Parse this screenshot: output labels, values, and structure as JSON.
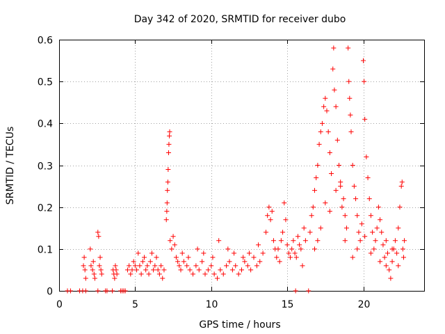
{
  "chart_data": {
    "type": "scatter",
    "title": "Day 342 of 2020, SRMTID for receiver dubo",
    "xlabel": "GPS time / hours",
    "ylabel": "SRMTID / TECUs",
    "xlim": [
      0,
      24
    ],
    "ylim": [
      0,
      0.6
    ],
    "xticks": [
      "0",
      "5",
      "10",
      "15",
      "20"
    ],
    "yticks": [
      "0",
      "0.1",
      "0.2",
      "0.3",
      "0.4",
      "0.5",
      "0.6"
    ],
    "grid": true,
    "marker": "+",
    "color": "#ff0000",
    "series": [
      {
        "name": "SRMTID",
        "points": [
          [
            0.55,
            0
          ],
          [
            0.75,
            0
          ],
          [
            1.35,
            0
          ],
          [
            1.55,
            0
          ],
          [
            1.75,
            0
          ],
          [
            2.55,
            0
          ],
          [
            3.05,
            0
          ],
          [
            3.15,
            0
          ],
          [
            3.5,
            0
          ],
          [
            4.05,
            0
          ],
          [
            4.15,
            0
          ],
          [
            4.25,
            0
          ],
          [
            4.35,
            0
          ],
          [
            15.55,
            0
          ],
          [
            16.4,
            0
          ],
          [
            1.6,
            0.06
          ],
          [
            1.65,
            0.08
          ],
          [
            1.7,
            0.05
          ],
          [
            1.75,
            0.03
          ],
          [
            2.05,
            0.1
          ],
          [
            2.1,
            0.06
          ],
          [
            2.2,
            0.05
          ],
          [
            2.25,
            0.07
          ],
          [
            2.3,
            0.04
          ],
          [
            2.35,
            0.03
          ],
          [
            2.55,
            0.14
          ],
          [
            2.6,
            0.13
          ],
          [
            2.65,
            0.06
          ],
          [
            2.7,
            0.08
          ],
          [
            2.75,
            0.05
          ],
          [
            2.8,
            0.04
          ],
          [
            3.55,
            0.05
          ],
          [
            3.6,
            0.04
          ],
          [
            3.65,
            0.03
          ],
          [
            3.7,
            0.06
          ],
          [
            3.75,
            0.05
          ],
          [
            3.8,
            0.04
          ],
          [
            4.5,
            0.05
          ],
          [
            4.6,
            0.06
          ],
          [
            4.7,
            0.04
          ],
          [
            4.8,
            0.05
          ],
          [
            4.9,
            0.07
          ],
          [
            5.0,
            0.06
          ],
          [
            5.1,
            0.05
          ],
          [
            5.2,
            0.09
          ],
          [
            5.3,
            0.06
          ],
          [
            5.4,
            0.04
          ],
          [
            5.5,
            0.07
          ],
          [
            5.6,
            0.08
          ],
          [
            5.7,
            0.05
          ],
          [
            5.8,
            0.06
          ],
          [
            5.9,
            0.04
          ],
          [
            6.0,
            0.07
          ],
          [
            6.1,
            0.09
          ],
          [
            6.2,
            0.05
          ],
          [
            6.3,
            0.06
          ],
          [
            6.4,
            0.08
          ],
          [
            6.5,
            0.05
          ],
          [
            6.6,
            0.04
          ],
          [
            6.7,
            0.06
          ],
          [
            6.8,
            0.03
          ],
          [
            6.9,
            0.05
          ],
          [
            7.05,
            0.17
          ],
          [
            7.08,
            0.19
          ],
          [
            7.1,
            0.21
          ],
          [
            7.12,
            0.24
          ],
          [
            7.15,
            0.26
          ],
          [
            7.17,
            0.29
          ],
          [
            7.2,
            0.33
          ],
          [
            7.22,
            0.35
          ],
          [
            7.25,
            0.37
          ],
          [
            7.27,
            0.38
          ],
          [
            7.3,
            0.12
          ],
          [
            7.4,
            0.1
          ],
          [
            7.5,
            0.13
          ],
          [
            7.6,
            0.11
          ],
          [
            7.7,
            0.08
          ],
          [
            7.8,
            0.07
          ],
          [
            7.9,
            0.06
          ],
          [
            8.0,
            0.05
          ],
          [
            8.2,
            0.07
          ],
          [
            8.4,
            0.06
          ],
          [
            8.6,
            0.05
          ],
          [
            8.8,
            0.04
          ],
          [
            9.0,
            0.06
          ],
          [
            9.2,
            0.05
          ],
          [
            9.4,
            0.07
          ],
          [
            9.6,
            0.04
          ],
          [
            9.8,
            0.05
          ],
          [
            10.0,
            0.06
          ],
          [
            10.2,
            0.04
          ],
          [
            10.4,
            0.03
          ],
          [
            10.6,
            0.05
          ],
          [
            10.8,
            0.04
          ],
          [
            11.0,
            0.06
          ],
          [
            11.2,
            0.07
          ],
          [
            11.4,
            0.05
          ],
          [
            11.6,
            0.06
          ],
          [
            11.8,
            0.04
          ],
          [
            12.0,
            0.05
          ],
          [
            12.2,
            0.07
          ],
          [
            12.4,
            0.06
          ],
          [
            12.6,
            0.05
          ],
          [
            12.8,
            0.08
          ],
          [
            13.0,
            0.06
          ],
          [
            13.2,
            0.07
          ],
          [
            13.4,
            0.09
          ],
          [
            8.1,
            0.09
          ],
          [
            8.5,
            0.08
          ],
          [
            9.1,
            0.1
          ],
          [
            9.5,
            0.09
          ],
          [
            10.1,
            0.08
          ],
          [
            10.5,
            0.12
          ],
          [
            11.1,
            0.1
          ],
          [
            11.5,
            0.09
          ],
          [
            12.1,
            0.08
          ],
          [
            12.5,
            0.09
          ],
          [
            13.1,
            0.11
          ],
          [
            13.6,
            0.14
          ],
          [
            13.7,
            0.18
          ],
          [
            13.8,
            0.2
          ],
          [
            13.9,
            0.17
          ],
          [
            14.0,
            0.19
          ],
          [
            14.1,
            0.12
          ],
          [
            14.2,
            0.1
          ],
          [
            14.3,
            0.08
          ],
          [
            14.4,
            0.1
          ],
          [
            14.5,
            0.07
          ],
          [
            14.6,
            0.12
          ],
          [
            14.7,
            0.14
          ],
          [
            14.8,
            0.21
          ],
          [
            14.9,
            0.17
          ],
          [
            15.0,
            0.11
          ],
          [
            15.1,
            0.09
          ],
          [
            15.2,
            0.08
          ],
          [
            15.3,
            0.1
          ],
          [
            15.4,
            0.12
          ],
          [
            15.5,
            0.09
          ],
          [
            15.6,
            0.08
          ],
          [
            15.7,
            0.13
          ],
          [
            15.8,
            0.11
          ],
          [
            15.9,
            0.1
          ],
          [
            16.0,
            0.06
          ],
          [
            16.1,
            0.15
          ],
          [
            16.2,
            0.12
          ],
          [
            16.5,
            0.14
          ],
          [
            16.6,
            0.18
          ],
          [
            16.7,
            0.2
          ],
          [
            16.8,
            0.24
          ],
          [
            16.9,
            0.27
          ],
          [
            17.0,
            0.3
          ],
          [
            17.1,
            0.35
          ],
          [
            17.2,
            0.38
          ],
          [
            17.3,
            0.4
          ],
          [
            17.4,
            0.44
          ],
          [
            17.5,
            0.46
          ],
          [
            17.6,
            0.43
          ],
          [
            17.7,
            0.38
          ],
          [
            17.8,
            0.33
          ],
          [
            17.9,
            0.28
          ],
          [
            18.0,
            0.53
          ],
          [
            18.05,
            0.58
          ],
          [
            18.1,
            0.48
          ],
          [
            18.2,
            0.44
          ],
          [
            18.3,
            0.36
          ],
          [
            18.4,
            0.3
          ],
          [
            18.5,
            0.25
          ],
          [
            18.6,
            0.2
          ],
          [
            18.7,
            0.22
          ],
          [
            18.8,
            0.18
          ],
          [
            18.9,
            0.15
          ],
          [
            16.8,
            0.1
          ],
          [
            17.0,
            0.12
          ],
          [
            17.2,
            0.15
          ],
          [
            17.5,
            0.21
          ],
          [
            17.8,
            0.19
          ],
          [
            18.2,
            0.24
          ],
          [
            18.5,
            0.26
          ],
          [
            18.8,
            0.12
          ],
          [
            19.0,
            0.58
          ],
          [
            19.05,
            0.5
          ],
          [
            19.1,
            0.46
          ],
          [
            19.15,
            0.42
          ],
          [
            19.2,
            0.38
          ],
          [
            19.3,
            0.3
          ],
          [
            19.4,
            0.25
          ],
          [
            19.5,
            0.22
          ],
          [
            19.6,
            0.18
          ],
          [
            19.7,
            0.14
          ],
          [
            19.8,
            0.12
          ],
          [
            19.9,
            0.16
          ],
          [
            20.0,
            0.55
          ],
          [
            20.05,
            0.5
          ],
          [
            20.1,
            0.41
          ],
          [
            20.2,
            0.32
          ],
          [
            20.3,
            0.27
          ],
          [
            20.4,
            0.22
          ],
          [
            20.5,
            0.18
          ],
          [
            20.6,
            0.14
          ],
          [
            20.7,
            0.1
          ],
          [
            20.8,
            0.12
          ],
          [
            20.9,
            0.15
          ],
          [
            21.0,
            0.2
          ],
          [
            21.1,
            0.17
          ],
          [
            21.2,
            0.14
          ],
          [
            21.3,
            0.11
          ],
          [
            21.4,
            0.08
          ],
          [
            21.5,
            0.06
          ],
          [
            21.6,
            0.09
          ],
          [
            21.7,
            0.05
          ],
          [
            21.8,
            0.03
          ],
          [
            21.9,
            0.07
          ],
          [
            22.0,
            0.1
          ],
          [
            22.1,
            0.12
          ],
          [
            22.2,
            0.09
          ],
          [
            22.3,
            0.15
          ],
          [
            22.4,
            0.2
          ],
          [
            22.5,
            0.25
          ],
          [
            22.55,
            0.26
          ],
          [
            22.6,
            0.1
          ],
          [
            22.65,
            0.08
          ],
          [
            22.7,
            0.12
          ],
          [
            19.3,
            0.08
          ],
          [
            19.6,
            0.1
          ],
          [
            20.1,
            0.13
          ],
          [
            20.5,
            0.09
          ],
          [
            21.1,
            0.07
          ],
          [
            21.5,
            0.12
          ],
          [
            21.9,
            0.1
          ],
          [
            22.3,
            0.06
          ]
        ]
      }
    ]
  }
}
